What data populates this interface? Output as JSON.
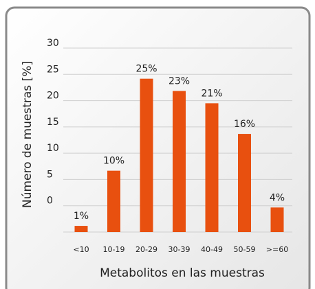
{
  "chart_data": {
    "type": "bar",
    "x_label": "Metabolitos en las muestras",
    "y_label": "Número de muestras   [%]",
    "categories": [
      "<10",
      "10-19",
      "20-29",
      "30-39",
      "40-49",
      "50-59",
      ">=60"
    ],
    "values": [
      1,
      10,
      25,
      23,
      21,
      16,
      4
    ],
    "value_labels": [
      "1%",
      "10%",
      "25%",
      "23%",
      "21%",
      "16%",
      "4%"
    ],
    "color": "#e8500f",
    "ylim": [
      0,
      30
    ],
    "yticks": [
      0,
      5,
      10,
      15,
      20,
      25,
      30
    ],
    "grid": true
  }
}
